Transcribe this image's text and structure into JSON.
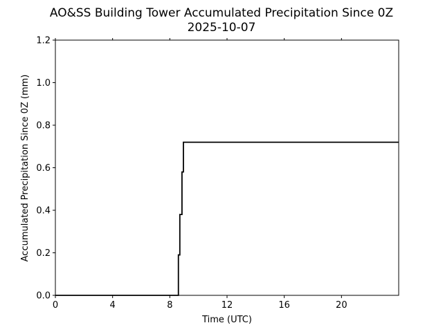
{
  "chart_data": {
    "type": "line",
    "title": "AO&SS Building Tower Accumulated Precipitation Since 0Z",
    "subtitle": "2025-10-07",
    "xlabel": "Time (UTC)",
    "ylabel": "Accumulated Precipitation Since 0Z (mm)",
    "xlim": [
      0,
      24
    ],
    "ylim": [
      0,
      1.2
    ],
    "xticks": [
      0,
      4,
      8,
      12,
      16,
      20
    ],
    "xtick_labels": [
      "0",
      "4",
      "8",
      "12",
      "16",
      "20"
    ],
    "yticks": [
      0.0,
      0.2,
      0.4,
      0.6,
      0.8,
      1.0,
      1.2
    ],
    "ytick_labels": [
      "0.0",
      "0.2",
      "0.4",
      "0.6",
      "0.8",
      "1.0",
      "1.2"
    ],
    "grid": false,
    "line_color": "#000000",
    "series": [
      {
        "x": [
          0,
          8.6,
          8.6,
          8.7,
          8.7,
          8.85,
          8.85,
          8.95,
          8.95,
          9.05,
          9.05,
          24
        ],
        "y": [
          0,
          0,
          0.19,
          0.19,
          0.38,
          0.38,
          0.58,
          0.58,
          0.72,
          0.72,
          0.72,
          0.72
        ]
      }
    ]
  }
}
